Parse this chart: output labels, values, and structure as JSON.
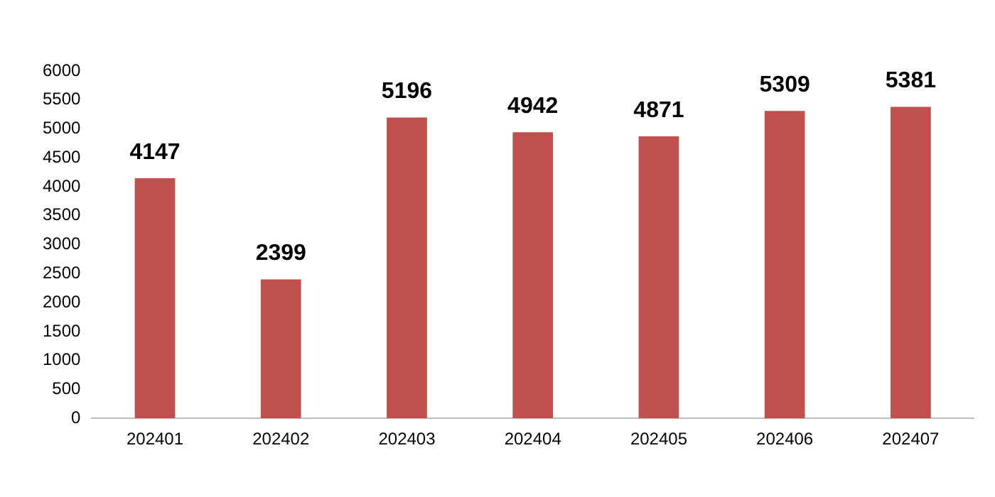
{
  "chart_data": {
    "type": "bar",
    "categories": [
      "202401",
      "202402",
      "202403",
      "202404",
      "202405",
      "202406",
      "202407"
    ],
    "values": [
      4147,
      2399,
      5196,
      4942,
      4871,
      5309,
      5381
    ],
    "color": "#c0504d",
    "ylim": [
      0,
      6000
    ],
    "yticks": [
      0,
      500,
      1000,
      1500,
      2000,
      2500,
      3000,
      3500,
      4000,
      4500,
      5000,
      5500,
      6000
    ],
    "grid": false,
    "data_labels": true
  }
}
